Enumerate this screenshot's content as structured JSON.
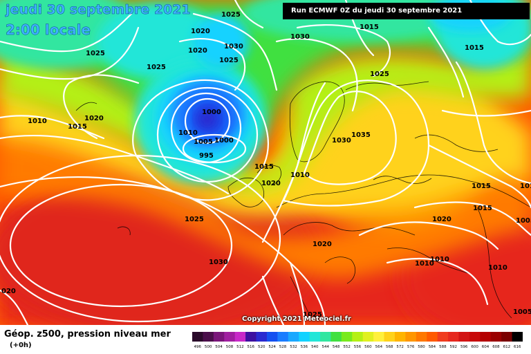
{
  "title": {
    "date": "jeudi 30 septembre 2021",
    "time": "2:00 locale"
  },
  "run": "Run ECMWF 0Z du jeudi 30 septembre 2021",
  "copyright": "Copyright 2021 Meteociel.fr",
  "footer": {
    "title": "Géop. z500, pression niveau mer",
    "subtitle": "(+0h)"
  },
  "legend": {
    "values": [
      "496",
      "500",
      "504",
      "508",
      "512",
      "516",
      "520",
      "524",
      "528",
      "532",
      "536",
      "540",
      "544",
      "548",
      "552",
      "556",
      "560",
      "564",
      "568",
      "572",
      "576",
      "580",
      "584",
      "588",
      "592",
      "596",
      "600",
      "604",
      "608",
      "612",
      "616"
    ],
    "colors": [
      "#2a0a2a",
      "#4a0e4a",
      "#7a157a",
      "#a01ea0",
      "#c828c8",
      "#3d10a0",
      "#2a2ad0",
      "#1450f0",
      "#1a7cff",
      "#1aa8ff",
      "#12d2ff",
      "#22e6d8",
      "#30e6a0",
      "#40e040",
      "#78ea1c",
      "#b4f014",
      "#e0f020",
      "#fff03c",
      "#ffd21a",
      "#ffb400",
      "#ff9600",
      "#ff7800",
      "#ff5a00",
      "#f03c1e",
      "#e6281e",
      "#d21414",
      "#c80a0a",
      "#b40000",
      "#9a0000",
      "#7a0000",
      "#000000"
    ]
  },
  "pressure_labels": [
    {
      "text": "1025"
    },
    {
      "text": "1020"
    },
    {
      "text": "1030"
    },
    {
      "text": "1025"
    },
    {
      "text": "1020"
    },
    {
      "text": "1025"
    },
    {
      "text": "1030"
    },
    {
      "text": "1015"
    },
    {
      "text": "1015"
    },
    {
      "text": "1025"
    },
    {
      "text": "1025"
    },
    {
      "text": "1015"
    },
    {
      "text": "1010"
    },
    {
      "text": "1015"
    },
    {
      "text": "1020"
    },
    {
      "text": "1000"
    },
    {
      "text": "1010"
    },
    {
      "text": "1005"
    },
    {
      "text": "1000"
    },
    {
      "text": "995"
    },
    {
      "text": "1030"
    },
    {
      "text": "1035"
    },
    {
      "text": "1015"
    },
    {
      "text": "1020"
    },
    {
      "text": "1010"
    },
    {
      "text": "1025"
    },
    {
      "text": "1030"
    },
    {
      "text": "1020"
    },
    {
      "text": "1010"
    },
    {
      "text": "1010"
    },
    {
      "text": "1020"
    },
    {
      "text": "1015"
    },
    {
      "text": "1010"
    },
    {
      "text": "1005"
    },
    {
      "text": "1010"
    },
    {
      "text": "1005"
    },
    {
      "text": "1025"
    },
    {
      "text": "020"
    }
  ]
}
